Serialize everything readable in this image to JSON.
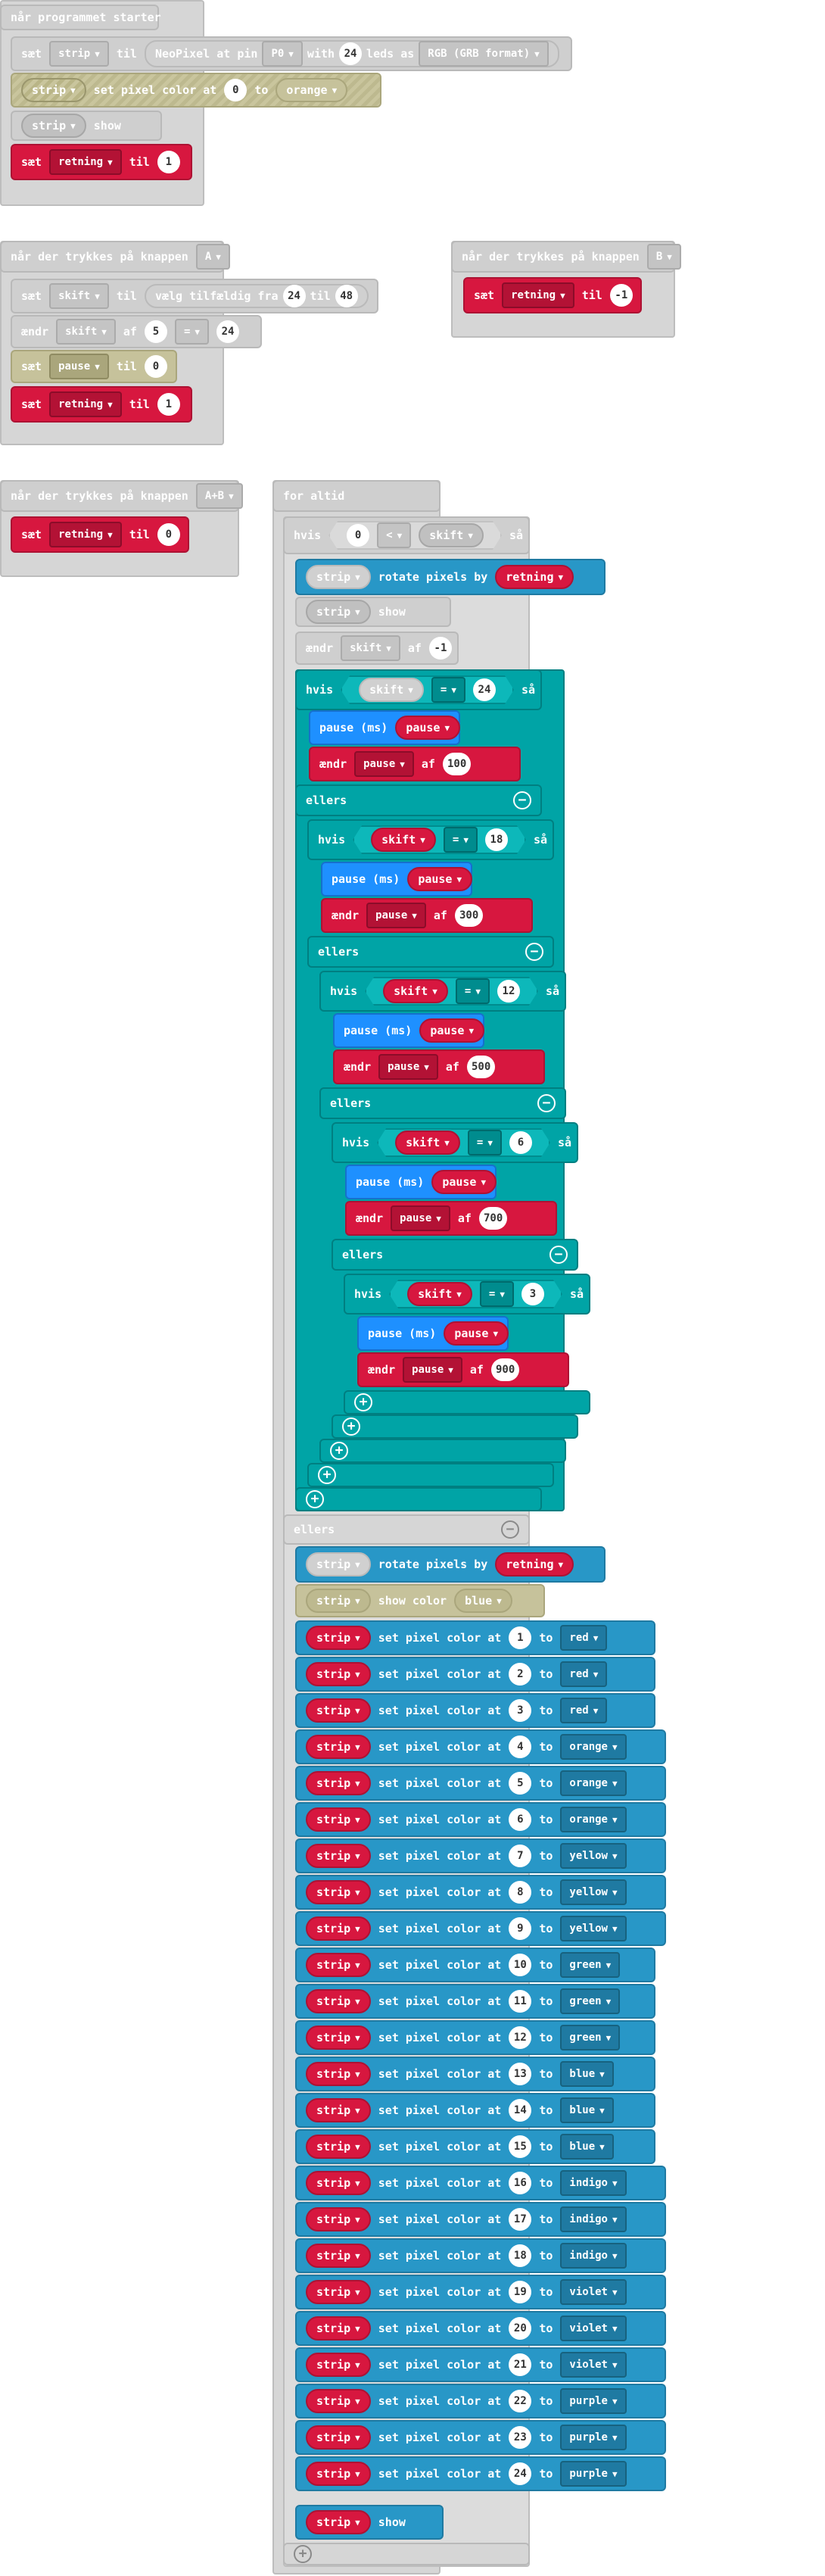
{
  "kw": {
    "start": "når programmet starter",
    "button_press": "når der trykkes på knappen",
    "forever": "for altid",
    "set": "sæt",
    "to_til": "til",
    "change": "ændr",
    "by_af": "af",
    "if": "hvis",
    "then": "så",
    "else": "ellers",
    "pause_ms": "pause (ms)",
    "show": "show",
    "show_color": "show color",
    "rotate": "rotate pixels by",
    "set_pixel": "set pixel color at",
    "to": "to",
    "neopixel": "NeoPixel at pin",
    "with": "with",
    "leds_as": "leds as",
    "pick_random": "vælg tilfældig fra",
    "op_eq": "=",
    "op_lt": "<",
    "minus": "−",
    "plus": "+"
  },
  "vars": {
    "strip": "strip",
    "retning": "retning",
    "skift": "skift",
    "pause": "pause"
  },
  "start_block": {
    "pin": "P0",
    "leds": "24",
    "format": "RGB (GRB format)",
    "pixel_index": "0",
    "pixel_color": "orange",
    "retning_value": "1"
  },
  "button_a": {
    "button": "A",
    "rand_from": "24",
    "rand_to": "48",
    "change_by": "5",
    "op": "=",
    "change_value": "24",
    "pause_value": "0",
    "retning_value": "1"
  },
  "button_b": {
    "button": "B",
    "retning_value": "-1"
  },
  "button_ab": {
    "button": "A+B",
    "retning_value": "0"
  },
  "forever_block": {
    "if_left": "0",
    "if_op": "<",
    "show_color": "blue",
    "change_by": "-1",
    "levels": [
      {
        "value": "24",
        "pause_change": "100"
      },
      {
        "value": "18",
        "pause_change": "300"
      },
      {
        "value": "12",
        "pause_change": "500"
      },
      {
        "value": "6",
        "pause_change": "700"
      },
      {
        "value": "3",
        "pause_change": "900"
      }
    ],
    "pixels": [
      {
        "i": "1",
        "c": "red"
      },
      {
        "i": "2",
        "c": "red"
      },
      {
        "i": "3",
        "c": "red"
      },
      {
        "i": "4",
        "c": "orange"
      },
      {
        "i": "5",
        "c": "orange"
      },
      {
        "i": "6",
        "c": "orange"
      },
      {
        "i": "7",
        "c": "yellow"
      },
      {
        "i": "8",
        "c": "yellow"
      },
      {
        "i": "9",
        "c": "yellow"
      },
      {
        "i": "10",
        "c": "green"
      },
      {
        "i": "11",
        "c": "green"
      },
      {
        "i": "12",
        "c": "green"
      },
      {
        "i": "13",
        "c": "blue"
      },
      {
        "i": "14",
        "c": "blue"
      },
      {
        "i": "15",
        "c": "blue"
      },
      {
        "i": "16",
        "c": "indigo"
      },
      {
        "i": "17",
        "c": "indigo"
      },
      {
        "i": "18",
        "c": "indigo"
      },
      {
        "i": "19",
        "c": "violet"
      },
      {
        "i": "20",
        "c": "violet"
      },
      {
        "i": "21",
        "c": "violet"
      },
      {
        "i": "22",
        "c": "purple"
      },
      {
        "i": "23",
        "c": "purple"
      },
      {
        "i": "24",
        "c": "purple"
      }
    ]
  },
  "colors": {
    "red": "#d7173f",
    "blue": "#2897c7",
    "teal": "#00a4a6",
    "grey": "#cfcfcf",
    "olive": "#c6c29b",
    "pause_blue": "#1e90ff"
  }
}
